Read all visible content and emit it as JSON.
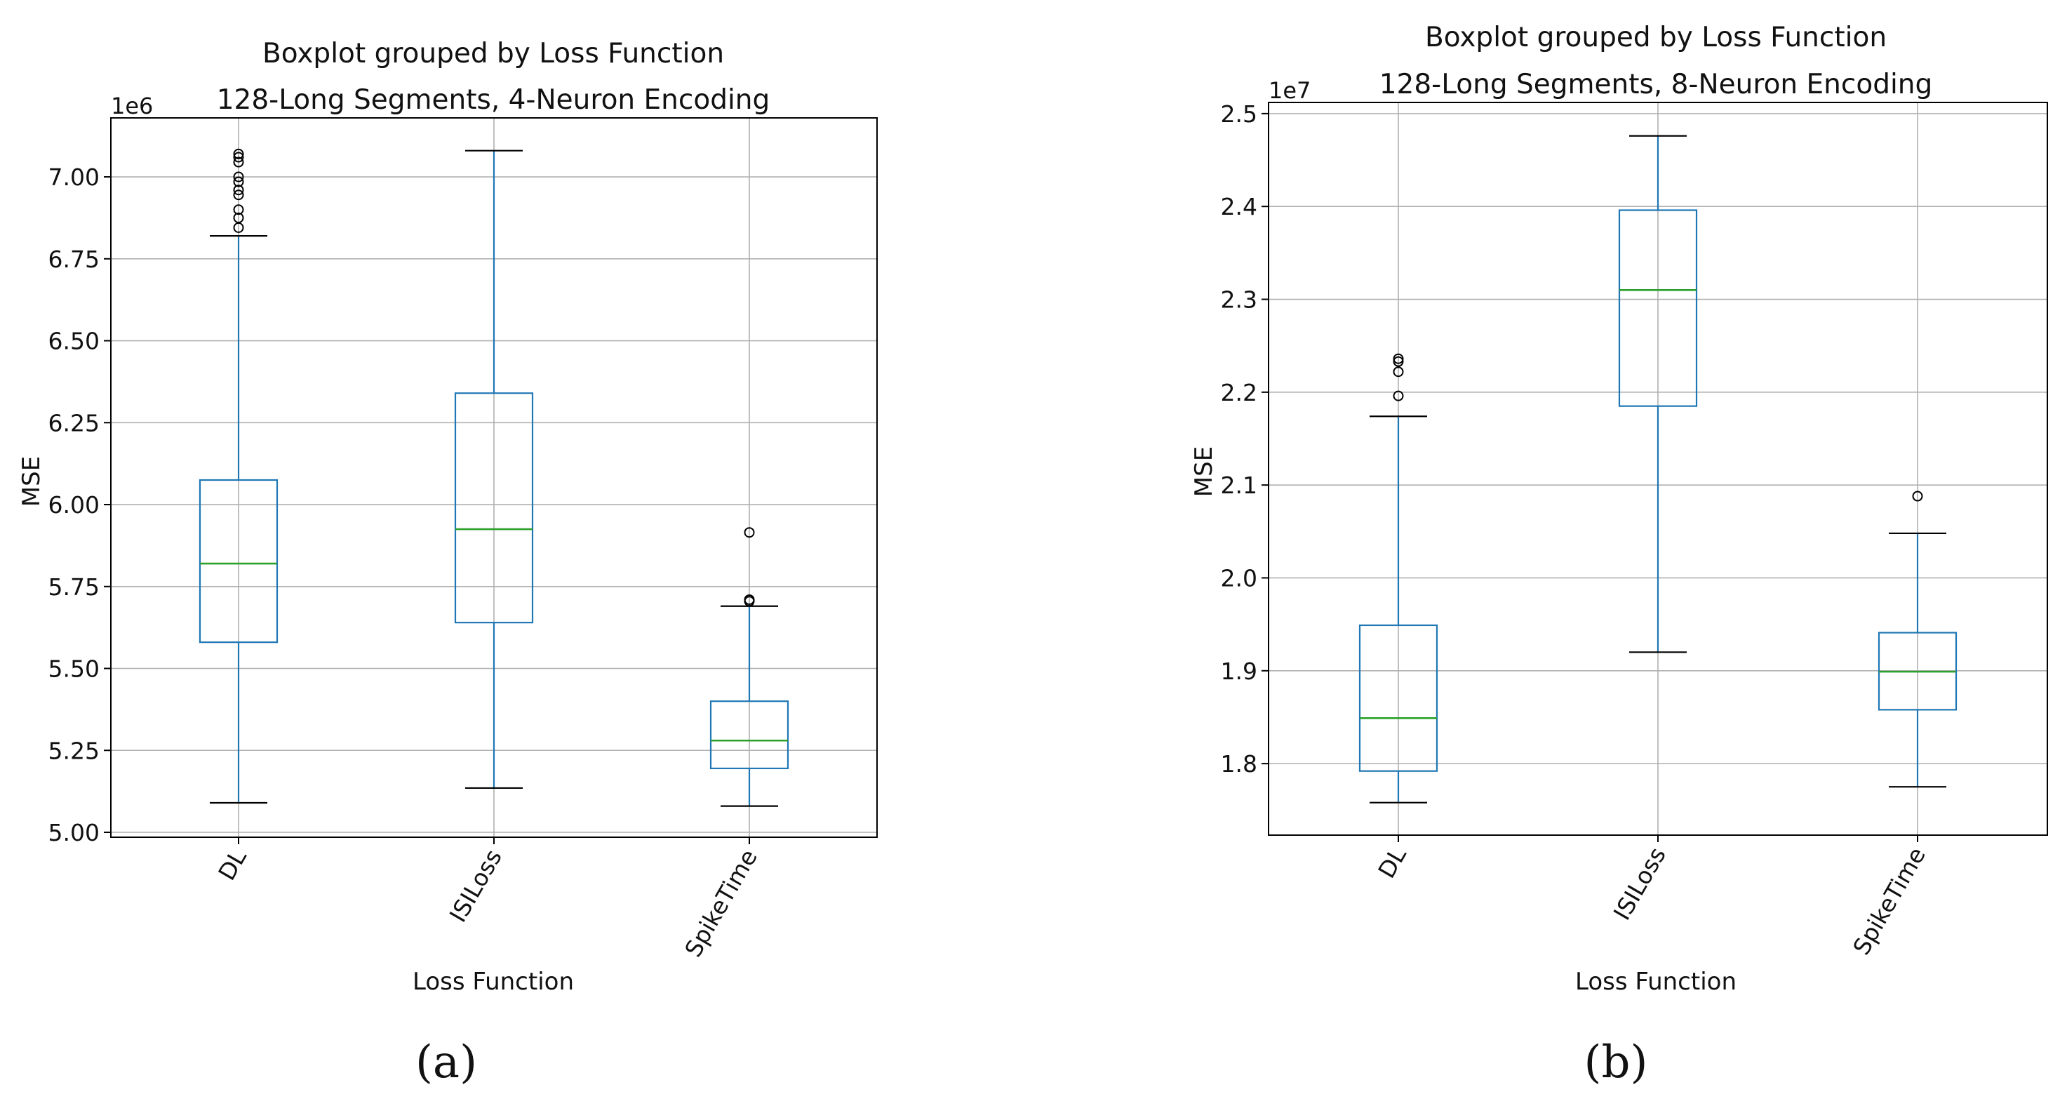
{
  "chart_data": [
    {
      "type": "boxplot",
      "suptitle": "Boxplot grouped by Loss Function",
      "title": "128-Long Segments, 4-Neuron Encoding",
      "xlabel": "Loss Function",
      "ylabel": "MSE",
      "y_offset_label": "1e6",
      "y_scale": 1000000,
      "ylim": [
        4.985,
        7.18
      ],
      "yticks": [
        5.0,
        5.25,
        5.5,
        5.75,
        6.0,
        6.25,
        6.5,
        6.75,
        7.0
      ],
      "ytick_labels": [
        "5.00",
        "5.25",
        "5.50",
        "5.75",
        "6.00",
        "6.25",
        "6.50",
        "6.75",
        "7.00"
      ],
      "caption": "(a)",
      "categories": [
        "DL",
        "ISILoss",
        "SpikeTime"
      ],
      "boxes": [
        {
          "name": "DL",
          "whisker_low": 5.09,
          "q1": 5.58,
          "median": 5.82,
          "q3": 6.075,
          "whisker_high": 6.82,
          "fliers": [
            6.845,
            6.875,
            6.9,
            6.945,
            6.96,
            6.985,
            7.0,
            7.045,
            7.06,
            7.07
          ]
        },
        {
          "name": "ISILoss",
          "whisker_low": 5.135,
          "q1": 5.64,
          "median": 5.925,
          "q3": 6.34,
          "whisker_high": 7.08,
          "fliers": []
        },
        {
          "name": "SpikeTime",
          "whisker_low": 5.08,
          "q1": 5.195,
          "median": 5.28,
          "q3": 5.4,
          "whisker_high": 5.69,
          "fliers": [
            5.705,
            5.71,
            5.915
          ]
        }
      ]
    },
    {
      "type": "boxplot",
      "suptitle": "Boxplot grouped by Loss Function",
      "title": "128-Long Segments, 8-Neuron Encoding",
      "xlabel": "Loss Function",
      "ylabel": "MSE",
      "y_offset_label": "1e7",
      "y_scale": 10000000,
      "ylim": [
        1.723,
        2.512
      ],
      "yticks": [
        1.8,
        1.9,
        2.0,
        2.1,
        2.2,
        2.3,
        2.4,
        2.5
      ],
      "ytick_labels": [
        "1.8",
        "1.9",
        "2.0",
        "2.1",
        "2.2",
        "2.3",
        "2.4",
        "2.5"
      ],
      "caption": "(b)",
      "categories": [
        "DL",
        "ISILoss",
        "SpikeTime"
      ],
      "boxes": [
        {
          "name": "DL",
          "whisker_low": 1.758,
          "q1": 1.792,
          "median": 1.849,
          "q3": 1.949,
          "whisker_high": 2.174,
          "fliers": [
            2.196,
            2.222,
            2.233,
            2.236
          ]
        },
        {
          "name": "ISILoss",
          "whisker_low": 1.92,
          "q1": 2.185,
          "median": 2.31,
          "q3": 2.396,
          "whisker_high": 2.476,
          "fliers": []
        },
        {
          "name": "SpikeTime",
          "whisker_low": 1.775,
          "q1": 1.858,
          "median": 1.899,
          "q3": 1.941,
          "whisker_high": 2.048,
          "fliers": [
            2.088
          ]
        }
      ]
    }
  ]
}
